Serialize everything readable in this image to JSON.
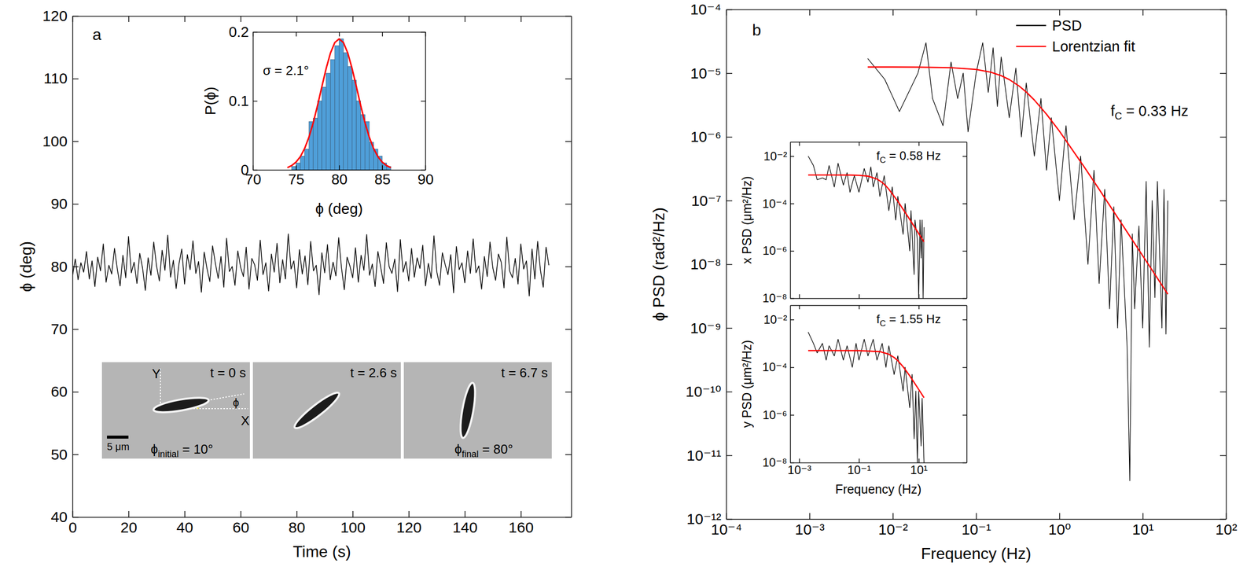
{
  "chart_data": [
    {
      "type": "line",
      "panel_label": "a",
      "x_label": "Time (s)",
      "y_label": "ϕ (deg)",
      "color": "#000000",
      "x": [
        0,
        1,
        2,
        3,
        4,
        5,
        6,
        7,
        8,
        9,
        10,
        11,
        12,
        13,
        14,
        15,
        16,
        17,
        18,
        19,
        20,
        21,
        22,
        23,
        24,
        25,
        26,
        27,
        28,
        29,
        30,
        31,
        32,
        33,
        34,
        35,
        36,
        37,
        38,
        39,
        40,
        41,
        42,
        43,
        44,
        45,
        46,
        47,
        48,
        49,
        50,
        51,
        52,
        53,
        54,
        55,
        56,
        57,
        58,
        59,
        60,
        61,
        62,
        63,
        64,
        65,
        66,
        67,
        68,
        69,
        70,
        71,
        72,
        73,
        74,
        75,
        76,
        77,
        78,
        79,
        80,
        81,
        82,
        83,
        84,
        85,
        86,
        87,
        88,
        89,
        90,
        91,
        92,
        93,
        94,
        95,
        96,
        97,
        98,
        99,
        100,
        101,
        102,
        103,
        104,
        105,
        106,
        107,
        108,
        109,
        110,
        111,
        112,
        113,
        114,
        115,
        116,
        117,
        118,
        119,
        120,
        121,
        122,
        123,
        124,
        125,
        126,
        127,
        128,
        129,
        130,
        131,
        132,
        133,
        134,
        135,
        136,
        137,
        138,
        139,
        140,
        141,
        142,
        143,
        144,
        145,
        146,
        147,
        148,
        149,
        150,
        151,
        152,
        153,
        154,
        155,
        156,
        157,
        158,
        159,
        160,
        161,
        162,
        163,
        164,
        165,
        166,
        167,
        168,
        169,
        170
      ],
      "values": [
        78.5,
        81.2,
        77.9,
        80.6,
        79.1,
        82.4,
        78.0,
        80.9,
        76.8,
        81.5,
        79.3,
        83.6,
        77.5,
        80.2,
        78.8,
        82.9,
        79.6,
        76.9,
        81.8,
        78.2,
        84.8,
        79.0,
        80.7,
        77.3,
        82.1,
        79.8,
        76.2,
        81.4,
        78.6,
        83.9,
        80.1,
        77.7,
        82.6,
        79.4,
        85.0,
        78.3,
        81.0,
        76.5,
        80.4,
        82.8,
        77.2,
        81.9,
        79.5,
        84.1,
        78.9,
        80.8,
        75.9,
        82.3,
        79.7,
        77.6,
        83.3,
        80.5,
        78.1,
        81.6,
        76.7,
        84.5,
        79.2,
        80.0,
        77.0,
        82.5,
        79.9,
        78.4,
        83.1,
        76.4,
        81.3,
        80.3,
        77.8,
        84.2,
        78.7,
        80.6,
        76.1,
        82.0,
        79.1,
        83.7,
        77.4,
        81.1,
        78.0,
        85.2,
        79.6,
        80.9,
        76.6,
        82.7,
        78.8,
        81.7,
        77.1,
        84.0,
        79.3,
        80.2,
        75.5,
        82.2,
        79.0,
        83.5,
        77.9,
        80.7,
        78.5,
        84.6,
        79.8,
        76.3,
        81.5,
        80.1,
        78.2,
        83.0,
        77.5,
        81.8,
        79.4,
        85.1,
        78.6,
        80.4,
        76.8,
        82.4,
        79.9,
        77.3,
        83.8,
        80.0,
        78.9,
        81.2,
        76.0,
        84.3,
        79.1,
        80.8,
        77.7,
        82.9,
        78.3,
        81.4,
        79.7,
        83.4,
        76.9,
        80.5,
        78.1,
        84.9,
        79.2,
        77.0,
        82.2,
        80.3,
        78.7,
        81.9,
        75.8,
        83.2,
        79.5,
        80.6,
        77.4,
        82.5,
        78.9,
        84.4,
        79.0,
        80.1,
        76.4,
        81.6,
        78.4,
        83.9,
        79.8,
        77.8,
        82.0,
        80.7,
        76.6,
        84.7,
        79.3,
        78.2,
        81.3,
        77.2,
        83.6,
        79.6,
        80.9,
        75.3,
        82.8,
        78.0,
        84.0,
        79.4,
        76.7,
        83.1,
        80.2
      ],
      "xlim": [
        0,
        178
      ],
      "xticks": [
        0,
        20,
        40,
        60,
        80,
        100,
        120,
        140,
        160
      ],
      "ylim": [
        40,
        120
      ],
      "yticks": [
        40,
        50,
        60,
        70,
        80,
        90,
        100,
        110,
        120
      ]
    },
    {
      "type": "histogram",
      "x_label": "ϕ (deg)",
      "y_label": "P(ϕ)",
      "color": "#4f9fd9",
      "bins": [
        74.5,
        75,
        75.5,
        76,
        76.5,
        77,
        77.5,
        78,
        78.5,
        79,
        79.5,
        80,
        80.5,
        81,
        81.5,
        82,
        82.5,
        83,
        83.5,
        84,
        84.5,
        85,
        85.5,
        86
      ],
      "values": [
        0.005,
        0.01,
        0.02,
        0.03,
        0.07,
        0.075,
        0.1,
        0.12,
        0.14,
        0.16,
        0.18,
        0.19,
        0.17,
        0.15,
        0.13,
        0.1,
        0.08,
        0.07,
        0.04,
        0.03,
        0.02,
        0.01,
        0.005
      ],
      "series": [
        {
          "type": "line",
          "color": "#ff0000",
          "x": [
            74,
            74.5,
            75,
            75.5,
            76,
            76.5,
            77,
            77.5,
            78,
            78.5,
            79,
            79.5,
            80,
            80.5,
            81,
            81.5,
            82,
            82.5,
            83,
            83.5,
            84,
            84.5,
            85,
            85.5,
            86
          ],
          "values": [
            0.0032,
            0.0062,
            0.0112,
            0.0191,
            0.031,
            0.0474,
            0.0684,
            0.0935,
            0.1207,
            0.1472,
            0.1696,
            0.1847,
            0.19,
            0.1847,
            0.1696,
            0.1472,
            0.1207,
            0.0935,
            0.0684,
            0.0474,
            0.031,
            0.0191,
            0.0112,
            0.0062,
            0.0032
          ]
        }
      ],
      "annotations": [
        {
          "text": "σ = 2.1°"
        }
      ],
      "xlim": [
        70,
        90
      ],
      "xticks": [
        70,
        75,
        80,
        85,
        90
      ],
      "ylim": [
        0,
        0.2
      ],
      "yticks": [
        0,
        0.1,
        0.2
      ]
    },
    {
      "type": "image_sequence",
      "scale_bar": "5 μm",
      "axis_labels": {
        "x": "X",
        "y": "Y",
        "angle": "ϕ"
      },
      "frames": [
        {
          "time_label": "t = 0 s",
          "phi": 10,
          "caption": {
            "base": "ϕ",
            "subscript": "initial",
            "rest": " = 10°"
          }
        },
        {
          "time_label": "t = 2.6 s",
          "phi": 38
        },
        {
          "time_label": "t = 6.7 s",
          "phi": 80,
          "caption": {
            "base": "ϕ",
            "subscript": "final",
            "rest": " = 80°"
          }
        }
      ]
    },
    {
      "type": "line",
      "panel_label": "b",
      "log": true,
      "x_label": "Frequency (Hz)",
      "y_label": "ϕ PSD (rad²/Hz)",
      "legend": "upper right",
      "series": [
        {
          "name": "PSD",
          "color": "#000000",
          "x": [
            0.005,
            0.008,
            0.012,
            0.02,
            0.025,
            0.03,
            0.04,
            0.05,
            0.06,
            0.07,
            0.08,
            0.1,
            0.12,
            0.14,
            0.16,
            0.18,
            0.2,
            0.25,
            0.3,
            0.35,
            0.4,
            0.5,
            0.6,
            0.7,
            0.8,
            1,
            1.2,
            1.5,
            1.8,
            2.2,
            2.6,
            3,
            3.5,
            4,
            4.5,
            5,
            5.5,
            6.5,
            7,
            7.5,
            8,
            9,
            10,
            11,
            12,
            13,
            14,
            15,
            17,
            18,
            19,
            20
          ],
          "values": [
            1.7e-05,
            8e-06,
            2.5e-06,
            1e-05,
            3e-05,
            4e-06,
            1.5e-06,
            1.5e-05,
            4e-06,
            1e-05,
            1.2e-06,
            1e-05,
            3e-05,
            5e-06,
            2.5e-05,
            3e-06,
            1.8e-05,
            2e-06,
            1.2e-05,
            1e-06,
            7e-06,
            5e-07,
            4e-06,
            3e-07,
            2e-06,
            1e-07,
            1.5e-06,
            5e-08,
            5e-07,
            1e-08,
            3e-07,
            5e-09,
            1.5e-07,
            2e-09,
            8e-08,
            1e-09,
            5e-08,
            5e-10,
            4e-12,
            3e-08,
            2e-09,
            4e-08,
            1e-09,
            2e-07,
            5e-10,
            1e-07,
            3e-09,
            2e-07,
            1e-09,
            1.5e-07,
            8e-10,
            1e-07
          ]
        },
        {
          "name": "Lorentzian fit",
          "color": "#ff0000",
          "x": [
            0.005,
            0.01,
            0.02,
            0.05,
            0.1,
            0.15,
            0.2,
            0.25,
            0.33,
            0.4,
            0.5,
            0.7,
            1,
            2,
            3,
            5,
            10,
            20
          ],
          "values": [
            1.25e-05,
            1.25e-05,
            1.245e-05,
            1.22e-05,
            1.145e-05,
            1.036e-05,
            9.14e-06,
            7.94e-06,
            6.25e-06,
            5.06e-06,
            3.79e-06,
            2.27e-06,
            1.23e-06,
            3.32e-07,
            1.5e-07,
            5.42e-08,
            1.36e-08,
            3.4e-09
          ]
        }
      ],
      "annotations": [
        {
          "base": "f",
          "subscript": "C",
          "rest": " = 0.33 Hz"
        }
      ],
      "xlim": [
        0.0001,
        100
      ],
      "xticks": [
        {
          "value": 0.0001,
          "label": "10⁻⁴"
        },
        {
          "value": 0.001,
          "label": "10⁻³"
        },
        {
          "value": 0.01,
          "label": "10⁻²"
        },
        {
          "value": 0.1,
          "label": "10⁻¹"
        },
        {
          "value": 1,
          "label": "10⁰"
        },
        {
          "value": 10,
          "label": "10¹"
        },
        {
          "value": 100,
          "label": "10²"
        }
      ],
      "ylim": [
        1e-12,
        0.0001
      ],
      "yticks": [
        {
          "value": 1e-12,
          "label": "10⁻¹²"
        },
        {
          "value": 1e-11,
          "label": "10⁻¹¹"
        },
        {
          "value": 1e-10,
          "label": "10⁻¹⁰"
        },
        {
          "value": 1e-09,
          "label": "10⁻⁹"
        },
        {
          "value": 1e-08,
          "label": "10⁻⁸"
        },
        {
          "value": 1e-07,
          "label": "10⁻⁷"
        },
        {
          "value": 1e-06,
          "label": "10⁻⁶"
        },
        {
          "value": 1e-05,
          "label": "10⁻⁵"
        },
        {
          "value": 0.0001,
          "label": "10⁻⁴"
        }
      ]
    },
    {
      "type": "line",
      "log": true,
      "y_label": "x PSD (μm²/Hz)",
      "tick_labels": "y",
      "series": [
        {
          "color": "#000000",
          "x": [
            0.002,
            0.003,
            0.004,
            0.006,
            0.008,
            0.01,
            0.015,
            0.02,
            0.03,
            0.04,
            0.05,
            0.07,
            0.1,
            0.15,
            0.2,
            0.25,
            0.3,
            0.4,
            0.5,
            0.7,
            1,
            1.3,
            1.7,
            2,
            3,
            3.5,
            5,
            5.5,
            7,
            7.5,
            9,
            10,
            11,
            12,
            13,
            14,
            15
          ],
          "values": [
            0.01,
            0.004,
            0.001,
            0.0012,
            0.001,
            0.004,
            0.0005,
            0.005,
            0.0006,
            0.002,
            0.0003,
            0.0015,
            0.0003,
            0.003,
            0.0008,
            0.0035,
            0.0005,
            0.002,
            0.0002,
            0.0015,
            5e-05,
            0.0005,
            2e-05,
            0.0002,
            5e-06,
            0.0001,
            1e-06,
            5e-05,
            1e-07,
            2e-05,
            3e-06,
            1e-08,
            2e-05,
            5e-07,
            2e-05,
            1e-08,
            1e-05
          ]
        },
        {
          "color": "#ff0000",
          "x": [
            0.002,
            0.01,
            0.05,
            0.1,
            0.2,
            0.4,
            0.58,
            0.8,
            1,
            2,
            5,
            10,
            15
          ],
          "values": [
            0.0016,
            0.0016,
            0.00159,
            0.00155,
            0.00143,
            0.00108,
            0.0008,
            0.00055,
            0.0004,
            0.000124,
            2.12e-05,
            5.4e-06,
            2.4e-06
          ]
        }
      ],
      "annotations": [
        {
          "base": "f",
          "subscript": "C",
          "rest": " = 0.58 Hz"
        }
      ],
      "xlim": [
        0.0005,
        400
      ],
      "xticks": [
        0.001,
        0.1,
        10
      ],
      "ylim": [
        1e-08,
        0.04
      ],
      "yticks": [
        {
          "value": 1e-08,
          "label": "10⁻⁸"
        },
        {
          "value": 1e-06,
          "label": "10⁻⁶"
        },
        {
          "value": 0.0001,
          "label": "10⁻⁴"
        },
        {
          "value": 0.01,
          "label": "10⁻²"
        }
      ]
    },
    {
      "type": "line",
      "log": true,
      "x_label": "Frequency (Hz)",
      "y_label": "y PSD (μm²/Hz)",
      "series": [
        {
          "color": "#000000",
          "x": [
            0.002,
            0.003,
            0.004,
            0.006,
            0.008,
            0.01,
            0.015,
            0.02,
            0.03,
            0.04,
            0.06,
            0.08,
            0.1,
            0.15,
            0.2,
            0.3,
            0.4,
            0.6,
            0.8,
            1,
            1.5,
            2,
            3,
            3.5,
            5,
            6,
            7,
            8,
            9,
            10,
            12,
            13,
            15
          ],
          "values": [
            0.003,
            0.001,
            0.0004,
            0.001,
            0.0002,
            0.0008,
            0.0003,
            0.0015,
            0.0002,
            0.0008,
            0.0001,
            0.001,
            0.0002,
            0.0015,
            0.0003,
            0.0015,
            0.0002,
            0.001,
            0.0001,
            0.0008,
            5e-05,
            0.0003,
            1e-05,
            0.0001,
            2e-06,
            5e-05,
            1e-07,
            1e-05,
            1e-08,
            1e-05,
            5e-08,
            5e-06,
            1e-08
          ]
        },
        {
          "color": "#ff0000",
          "x": [
            0.002,
            0.01,
            0.1,
            0.5,
            1,
            1.55,
            2,
            3,
            5,
            10,
            15
          ],
          "values": [
            0.0005,
            0.0005,
            0.000498,
            0.000453,
            0.000353,
            0.00025,
            0.000188,
            0.000105,
            4.39e-05,
            1.17e-05,
            5.3e-06
          ]
        }
      ],
      "annotations": [
        {
          "base": "f",
          "subscript": "C",
          "rest": " = 1.55 Hz"
        }
      ],
      "xlim": [
        0.0005,
        400
      ],
      "xticks": [
        {
          "value": 0.001,
          "label": "10⁻³"
        },
        {
          "value": 0.1,
          "label": "10⁻¹"
        },
        {
          "value": 10,
          "label": "10¹"
        }
      ],
      "ylim": [
        1e-08,
        0.04
      ],
      "yticks": [
        {
          "value": 1e-08,
          "label": "10⁻⁸"
        },
        {
          "value": 1e-06,
          "label": "10⁻⁶"
        },
        {
          "value": 0.0001,
          "label": "10⁻⁴"
        },
        {
          "value": 0.01,
          "label": "10⁻²"
        }
      ]
    }
  ]
}
